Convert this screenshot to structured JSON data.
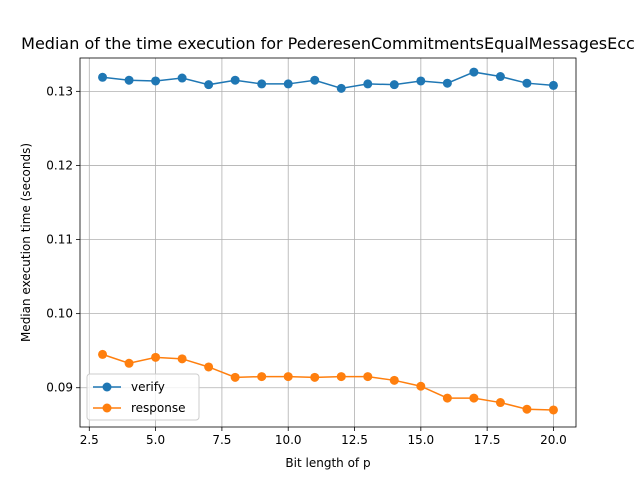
{
  "chart_data": {
    "type": "line",
    "title": "Median of the time execution for PederesenCommitmentsEqualMessagesEcc",
    "xlabel": "Bit length of p",
    "ylabel": "Median execution time (seconds)",
    "xlim": [
      2.15,
      20.85
    ],
    "ylim": [
      0.0847,
      0.1345
    ],
    "xticks": [
      2.5,
      5.0,
      7.5,
      10.0,
      12.5,
      15.0,
      17.5,
      20.0
    ],
    "xtick_labels": [
      "2.5",
      "5.0",
      "7.5",
      "10.0",
      "12.5",
      "15.0",
      "17.5",
      "20.0"
    ],
    "yticks": [
      0.09,
      0.1,
      0.11,
      0.12,
      0.13
    ],
    "ytick_labels": [
      "0.09",
      "0.10",
      "0.11",
      "0.12",
      "0.13"
    ],
    "grid": true,
    "legend_position": "lower-left",
    "x": [
      3,
      4,
      5,
      6,
      7,
      8,
      9,
      10,
      11,
      12,
      13,
      14,
      15,
      16,
      17,
      18,
      19,
      20
    ],
    "series": [
      {
        "name": "verify",
        "color": "#1f77b4",
        "marker": "circle",
        "values": [
          0.1319,
          0.1315,
          0.1314,
          0.1318,
          0.1309,
          0.1315,
          0.131,
          0.131,
          0.1315,
          0.1304,
          0.131,
          0.1309,
          0.1314,
          0.1311,
          0.1326,
          0.132,
          0.1311,
          0.1308
        ]
      },
      {
        "name": "response",
        "color": "#ff7f0e",
        "marker": "circle",
        "values": [
          0.0945,
          0.0933,
          0.0941,
          0.0939,
          0.0928,
          0.0914,
          0.0915,
          0.0915,
          0.0914,
          0.0915,
          0.0915,
          0.091,
          0.0902,
          0.0886,
          0.0886,
          0.088,
          0.0871,
          0.087
        ]
      }
    ]
  }
}
